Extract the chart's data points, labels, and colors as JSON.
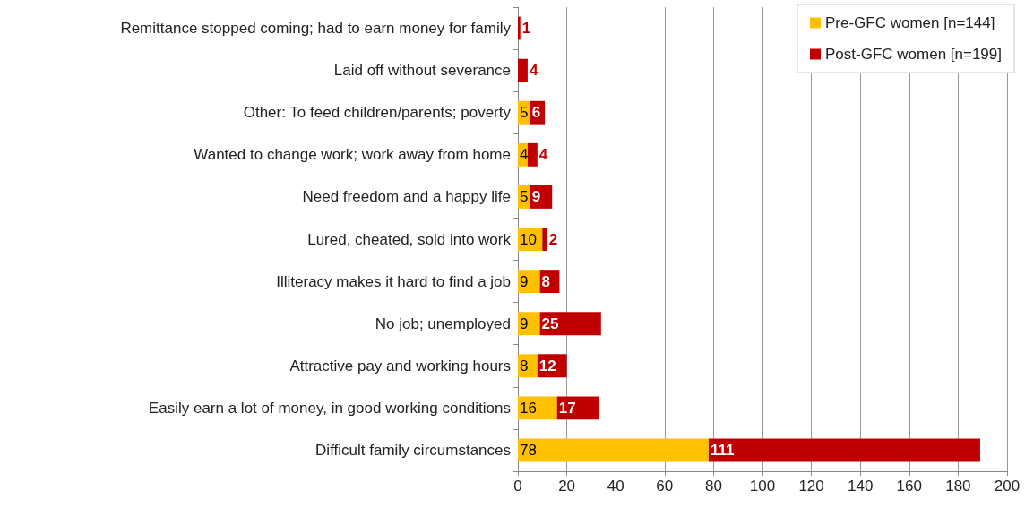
{
  "chart_data": {
    "type": "bar",
    "orientation": "horizontal",
    "stacked": true,
    "categories": [
      "Remittance stopped coming; had to earn money for family",
      "Laid off without severance",
      "Other: To feed children/parents; poverty",
      "Wanted to change work; work away from home",
      "Need freedom and a happy life",
      "Lured, cheated, sold into work",
      "Illiteracy makes it hard to find a job",
      "No job; unemployed",
      "Attractive pay and working hours",
      "Easily earn a lot of money, in good working conditions",
      "Difficult family circumstances"
    ],
    "series": [
      {
        "name": "Pre-GFC women [n=144]",
        "color": "#ffc000",
        "values": [
          null,
          null,
          5,
          4,
          5,
          10,
          9,
          9,
          8,
          16,
          78
        ]
      },
      {
        "name": "Post-GFC women [n=199]",
        "color": "#c00000",
        "values": [
          1,
          4,
          6,
          4,
          9,
          2,
          8,
          25,
          12,
          17,
          111
        ]
      }
    ],
    "xlim": [
      0,
      200
    ],
    "xticks": [
      0,
      20,
      40,
      60,
      80,
      100,
      120,
      140,
      160,
      180,
      200
    ],
    "grid": "x",
    "legend": "top right",
    "data_labels": true
  }
}
